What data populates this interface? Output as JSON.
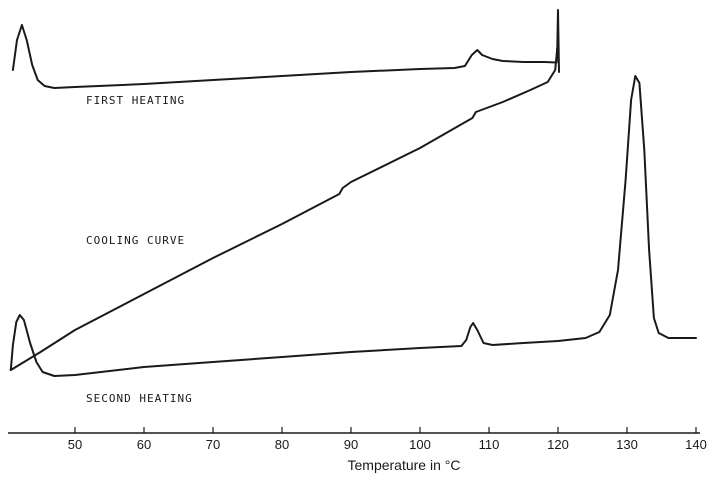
{
  "chart_data": {
    "type": "line",
    "title": "",
    "xlabel": "Temperature in °C",
    "ylabel": "",
    "xlim": [
      40.5,
      140.5
    ],
    "grid": false,
    "legend": "none",
    "x_ticks": [
      50,
      60,
      70,
      80,
      90,
      100,
      110,
      120,
      130,
      140
    ],
    "series": [
      {
        "name": "FIRST HEATING",
        "points": [
          [
            41.0,
            70
          ],
          [
            41.6,
            40
          ],
          [
            42.3,
            25
          ],
          [
            43.0,
            40
          ],
          [
            43.8,
            65
          ],
          [
            44.6,
            80
          ],
          [
            45.6,
            86
          ],
          [
            47,
            88
          ],
          [
            50,
            87
          ],
          [
            60,
            84
          ],
          [
            70,
            80
          ],
          [
            80,
            76
          ],
          [
            90,
            72
          ],
          [
            100,
            69
          ],
          [
            105,
            68
          ],
          [
            106.5,
            66
          ],
          [
            107.5,
            55
          ],
          [
            108.3,
            50
          ],
          [
            109,
            55
          ],
          [
            110.5,
            59
          ],
          [
            112,
            61
          ],
          [
            115,
            62
          ],
          [
            118,
            62
          ],
          [
            119.8,
            62.5
          ],
          [
            119.9,
            48
          ],
          [
            120.0,
            10
          ],
          [
            120.15,
            72
          ]
        ]
      },
      {
        "name": "COOLING CURVE",
        "points": [
          [
            40.7,
            370
          ],
          [
            45,
            352
          ],
          [
            50,
            330
          ],
          [
            60,
            294
          ],
          [
            70,
            258
          ],
          [
            80,
            224
          ],
          [
            88.3,
            194
          ],
          [
            88.8,
            188
          ],
          [
            90,
            182
          ],
          [
            100,
            148
          ],
          [
            107.6,
            118
          ],
          [
            108.1,
            112
          ],
          [
            112,
            102
          ],
          [
            116,
            90
          ],
          [
            118.5,
            82
          ],
          [
            119.6,
            70
          ],
          [
            119.9,
            48
          ]
        ]
      },
      {
        "name": "SECOND HEATING",
        "points": [
          [
            40.7,
            370
          ],
          [
            41.0,
            345
          ],
          [
            41.5,
            322
          ],
          [
            42.0,
            315
          ],
          [
            42.6,
            320
          ],
          [
            43.5,
            343
          ],
          [
            44.4,
            362
          ],
          [
            45.3,
            372
          ],
          [
            47,
            376
          ],
          [
            50,
            375
          ],
          [
            60,
            367
          ],
          [
            70,
            362
          ],
          [
            80,
            357
          ],
          [
            90,
            352
          ],
          [
            100,
            348
          ],
          [
            106,
            346
          ],
          [
            106.7,
            340
          ],
          [
            107.3,
            327
          ],
          [
            107.7,
            323
          ],
          [
            108.3,
            330
          ],
          [
            109.2,
            343
          ],
          [
            110.5,
            345
          ],
          [
            115,
            343
          ],
          [
            120,
            341
          ],
          [
            124,
            338
          ],
          [
            126,
            332
          ],
          [
            127.5,
            315
          ],
          [
            128.7,
            270
          ],
          [
            129.8,
            180
          ],
          [
            130.6,
            100
          ],
          [
            131.2,
            76
          ],
          [
            131.8,
            83
          ],
          [
            132.5,
            150
          ],
          [
            133.2,
            250
          ],
          [
            133.9,
            318
          ],
          [
            134.6,
            333
          ],
          [
            136,
            338
          ],
          [
            140,
            338
          ]
        ]
      }
    ],
    "annotations": [
      "FIRST HEATING",
      "COOLING CURVE",
      "SECOND HEATING"
    ]
  }
}
